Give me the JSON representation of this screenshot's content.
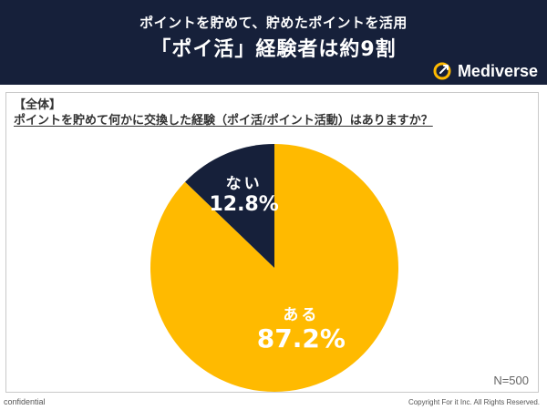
{
  "header": {
    "line1": "ポイントを貯めて、貯めたポイントを活用",
    "line2": "「ポイ活」経験者は約9割",
    "brand_name": "Mediverse",
    "background_color": "#16203a"
  },
  "panel": {
    "tag": "【全体】",
    "question": "ポイントを貯めて何かに交換した経験（ポイ活/ポイント活動）はありますか？",
    "sample_size": "N=500"
  },
  "chart_data": {
    "type": "pie",
    "title": "",
    "slices": [
      {
        "label": "ある",
        "value": 87.2,
        "value_label": "87.2%",
        "color": "#ffba00",
        "text_color": "#ffffff"
      },
      {
        "label": "ない",
        "value": 12.8,
        "value_label": "12.8%",
        "color": "#16203a",
        "text_color": "#ffffff"
      }
    ],
    "start": "12 o'clock",
    "direction": "clockwise"
  },
  "footer": {
    "left": "confidential",
    "right": "Copyright For it Inc. All Rights Reserved."
  },
  "icons": {
    "brand_logo": "rocket-circle-icon"
  }
}
